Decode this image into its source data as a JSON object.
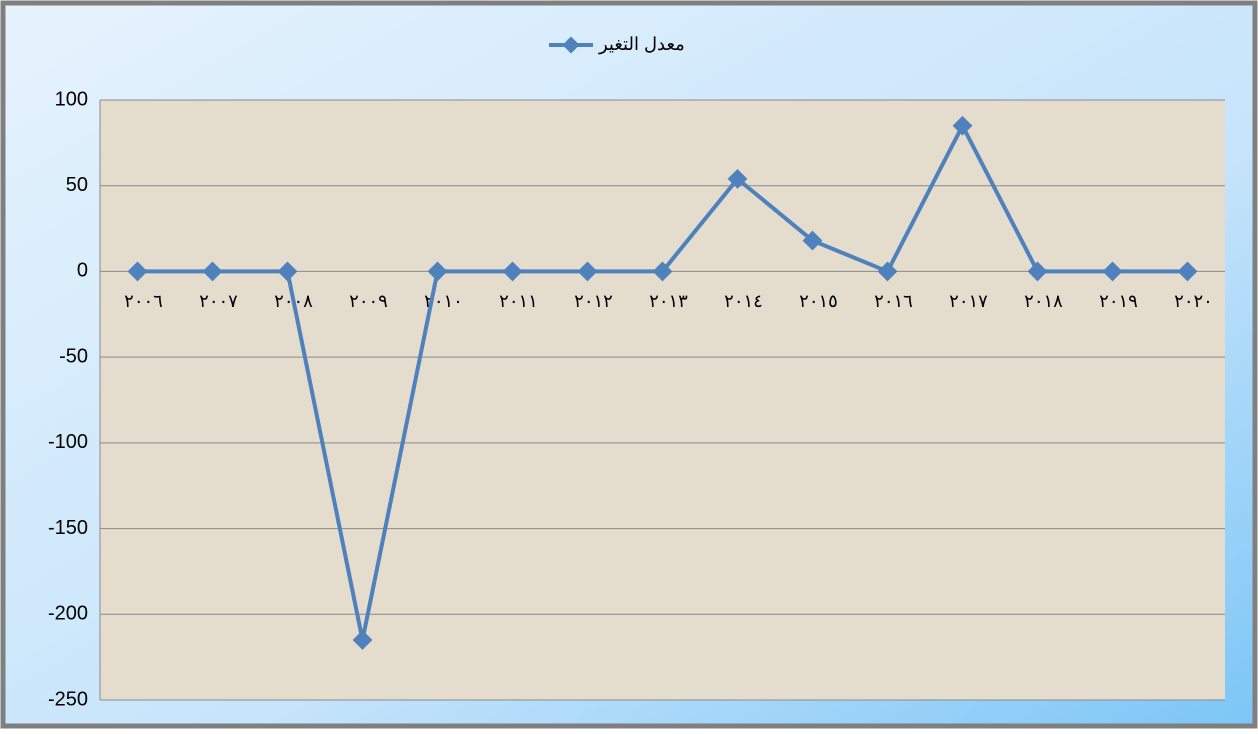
{
  "chart_data": {
    "type": "line",
    "categories": [
      "٢٠٠٦",
      "٢٠٠٧",
      "٢٠٠٨",
      "٢٠٠٩",
      "٢٠١٠",
      "٢٠١١",
      "٢٠١٢",
      "٢٠١٣",
      "٢٠١٤",
      "٢٠١٥",
      "٢٠١٦",
      "٢٠١٧",
      "٢٠١٨",
      "٢٠١٩",
      "٢٠٢٠"
    ],
    "series": [
      {
        "name": "معدل التغير",
        "color": "#4f81bd",
        "values": [
          0,
          0,
          0,
          -215,
          0,
          0,
          0,
          0,
          54,
          18,
          0,
          85,
          0,
          0,
          0
        ]
      }
    ],
    "ylim": [
      -250,
      100
    ],
    "yticks": [
      100,
      50,
      0,
      -50,
      -100,
      -150,
      -200,
      -250
    ],
    "grid": true,
    "legend": "top"
  }
}
